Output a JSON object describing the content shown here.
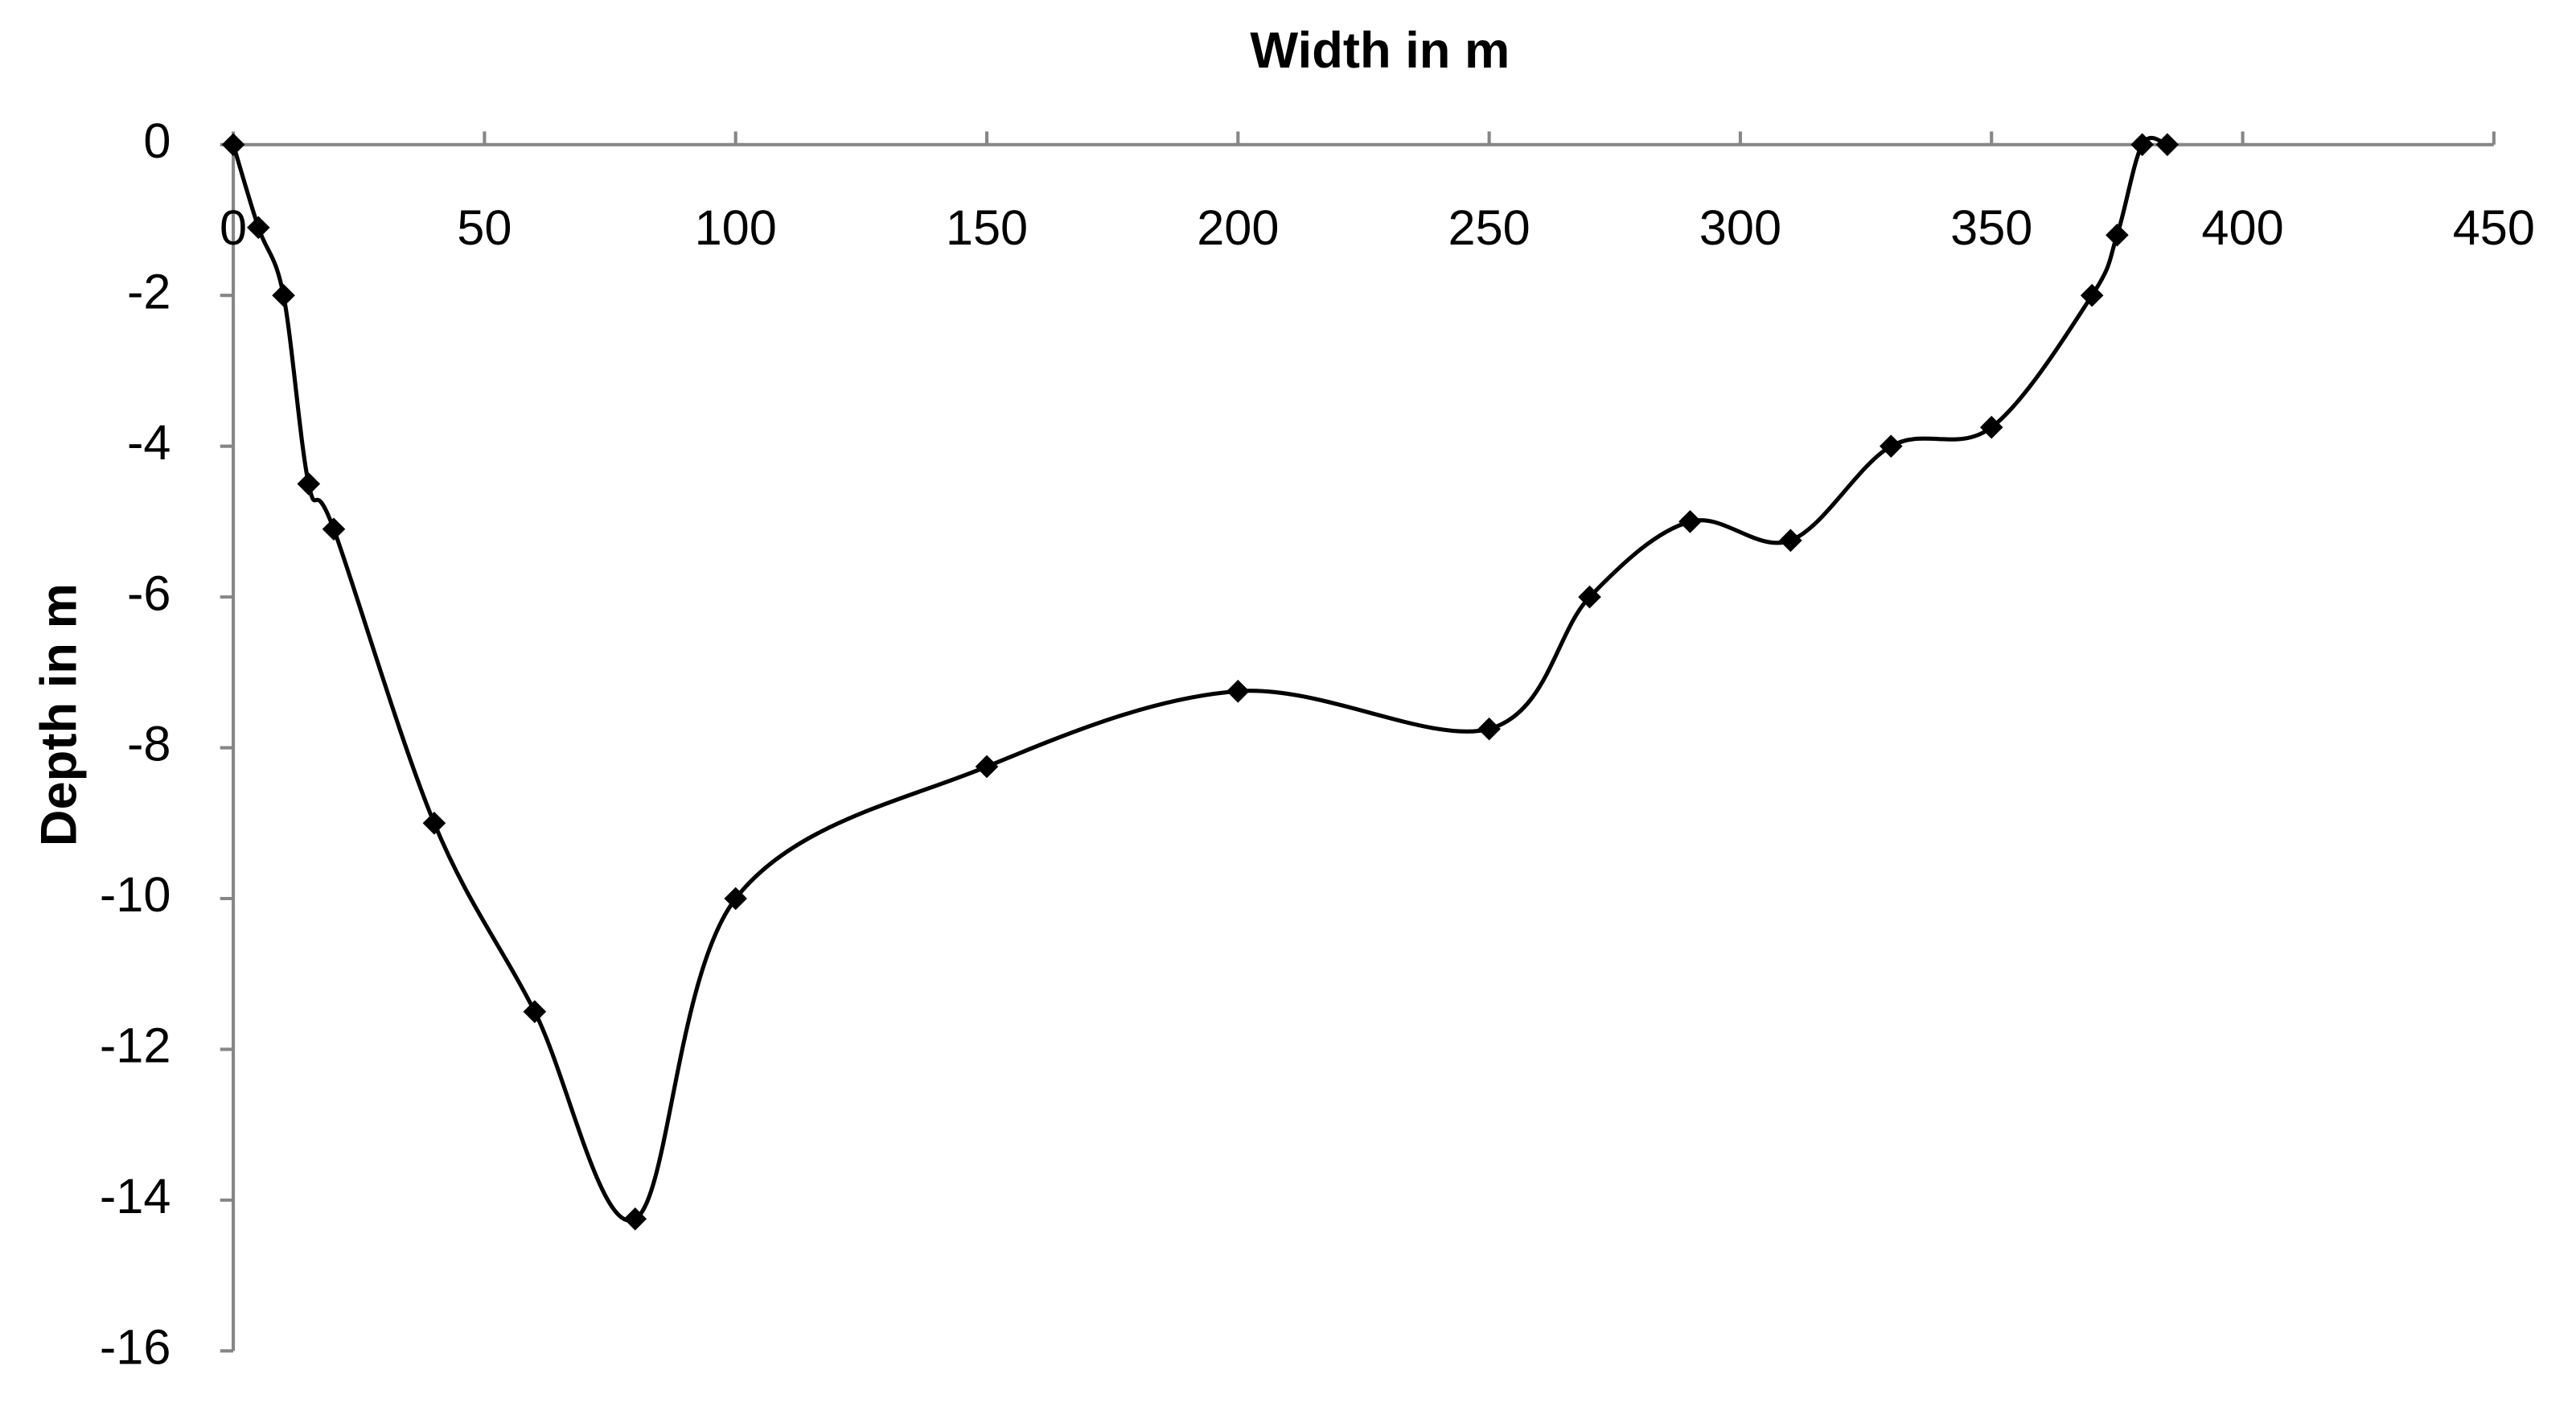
{
  "chart_data": {
    "type": "line",
    "smooth": true,
    "marker": "diamond",
    "color": "#000000",
    "x_label": "Width in m",
    "y_label": "Depth in m",
    "x_axis_position": "top",
    "x": [
      0,
      5,
      10,
      15,
      20,
      40,
      60,
      80,
      100,
      150,
      200,
      250,
      270,
      290,
      310,
      330,
      350,
      370,
      375,
      380,
      385
    ],
    "values": [
      0,
      -1.1,
      -2,
      -4.5,
      -5.1,
      -9,
      -11.5,
      -14.25,
      -10,
      -8.25,
      -7.25,
      -7.75,
      -6,
      -5,
      -5.25,
      -4,
      -3.75,
      -2,
      -1.2,
      0,
      0
    ],
    "xlim": [
      0,
      450
    ],
    "xticks": [
      0,
      50,
      100,
      150,
      200,
      250,
      300,
      350,
      400,
      450
    ],
    "ylim": [
      -16,
      0
    ],
    "yticks": [
      -16,
      -14,
      -12,
      -10,
      -8,
      -6,
      -4,
      -2,
      0
    ]
  }
}
